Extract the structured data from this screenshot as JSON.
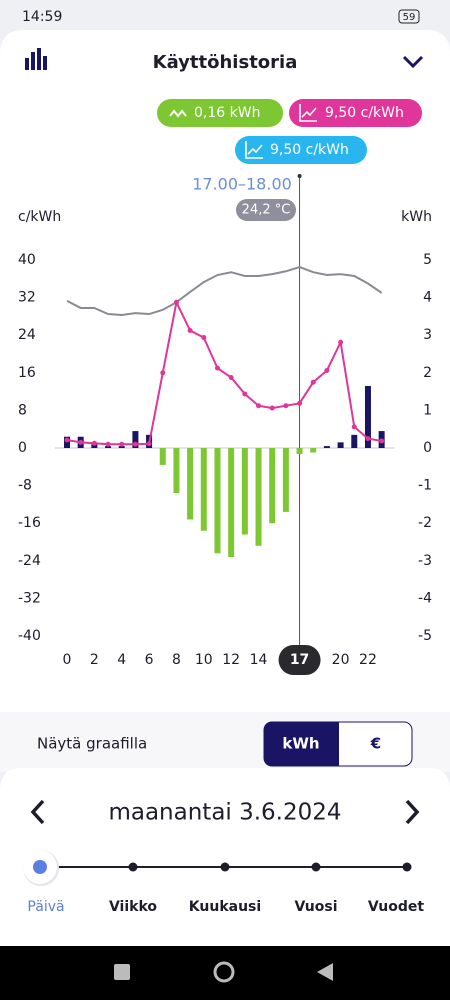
{
  "status_bar": {
    "time": "14:59",
    "battery": "59"
  },
  "header": {
    "title": "Käyttöhistoria"
  },
  "tooltip": {
    "badges": [
      "0,16 kWh",
      "9,50 c/kWh",
      "9,50 c/kWh"
    ],
    "time_range": "17.00–18.00",
    "temperature": "24,2 °C"
  },
  "chart_data": {
    "type": "combo",
    "y_label": "c/kWh",
    "y2_label": "kWh",
    "categories": [
      "0",
      null,
      "2",
      null,
      "4",
      null,
      "6",
      null,
      "8",
      null,
      "10",
      null,
      "12",
      null,
      "14",
      null,
      null,
      "17",
      null,
      null,
      "20",
      null,
      "22",
      null
    ],
    "selected_index": 17,
    "ylim": [
      -40,
      40
    ],
    "yticks": [
      -40,
      -32,
      -24,
      -16,
      -8,
      0,
      8,
      16,
      24,
      32,
      40
    ],
    "y2lim": [
      -5,
      5
    ],
    "y2ticks": [
      -5,
      -4,
      -3,
      -2,
      -1,
      0,
      1,
      2,
      3,
      4,
      5
    ],
    "series": [
      {
        "type": "bar",
        "axis": "y2",
        "color": "#1a1464",
        "values": [
          0.3,
          0.3,
          0.1,
          0.05,
          0.05,
          0.45,
          0.35,
          0,
          0,
          0,
          0,
          0,
          0,
          0,
          0,
          0,
          0,
          0,
          0,
          0.05,
          0.15,
          0.35,
          1.65,
          0.45
        ]
      },
      {
        "type": "bar",
        "axis": "y2",
        "color": "#7dc832",
        "values": [
          0,
          0,
          0,
          0,
          0,
          0,
          0,
          -0.45,
          -1.2,
          -1.9,
          -2.2,
          -2.8,
          -2.9,
          -2.3,
          -2.6,
          -2,
          -1.7,
          -0.16,
          -0.12,
          0,
          0,
          0,
          0,
          0
        ]
      },
      {
        "type": "line",
        "axis": "y",
        "color": "#8a8a94",
        "values": [
          31.3,
          29.8,
          29.8,
          28.5,
          28.3,
          28.7,
          28.5,
          29.4,
          31,
          33.2,
          35.3,
          36.8,
          37.4,
          36.6,
          36.6,
          37,
          37.6,
          38.5,
          37.4,
          36.8,
          37,
          36.6,
          35,
          33
        ]
      },
      {
        "type": "line",
        "axis": "y",
        "color": "#e0359a",
        "dots": true,
        "values": [
          1.7,
          1.2,
          1,
          0.8,
          0.8,
          0.8,
          0.9,
          16,
          31,
          25,
          23.5,
          17,
          15,
          11.5,
          9,
          8.5,
          9,
          9.5,
          14,
          16.5,
          22.5,
          4.5,
          2,
          1.5
        ]
      }
    ]
  },
  "display": {
    "label": "Näytä graafilla",
    "options": [
      "kWh",
      "€"
    ]
  },
  "date_nav": {
    "date": "maanantai 3.6.2024"
  },
  "periods": [
    "Päivä",
    "Viikko",
    "Kuukausi",
    "Vuosi",
    "Vuodet"
  ]
}
